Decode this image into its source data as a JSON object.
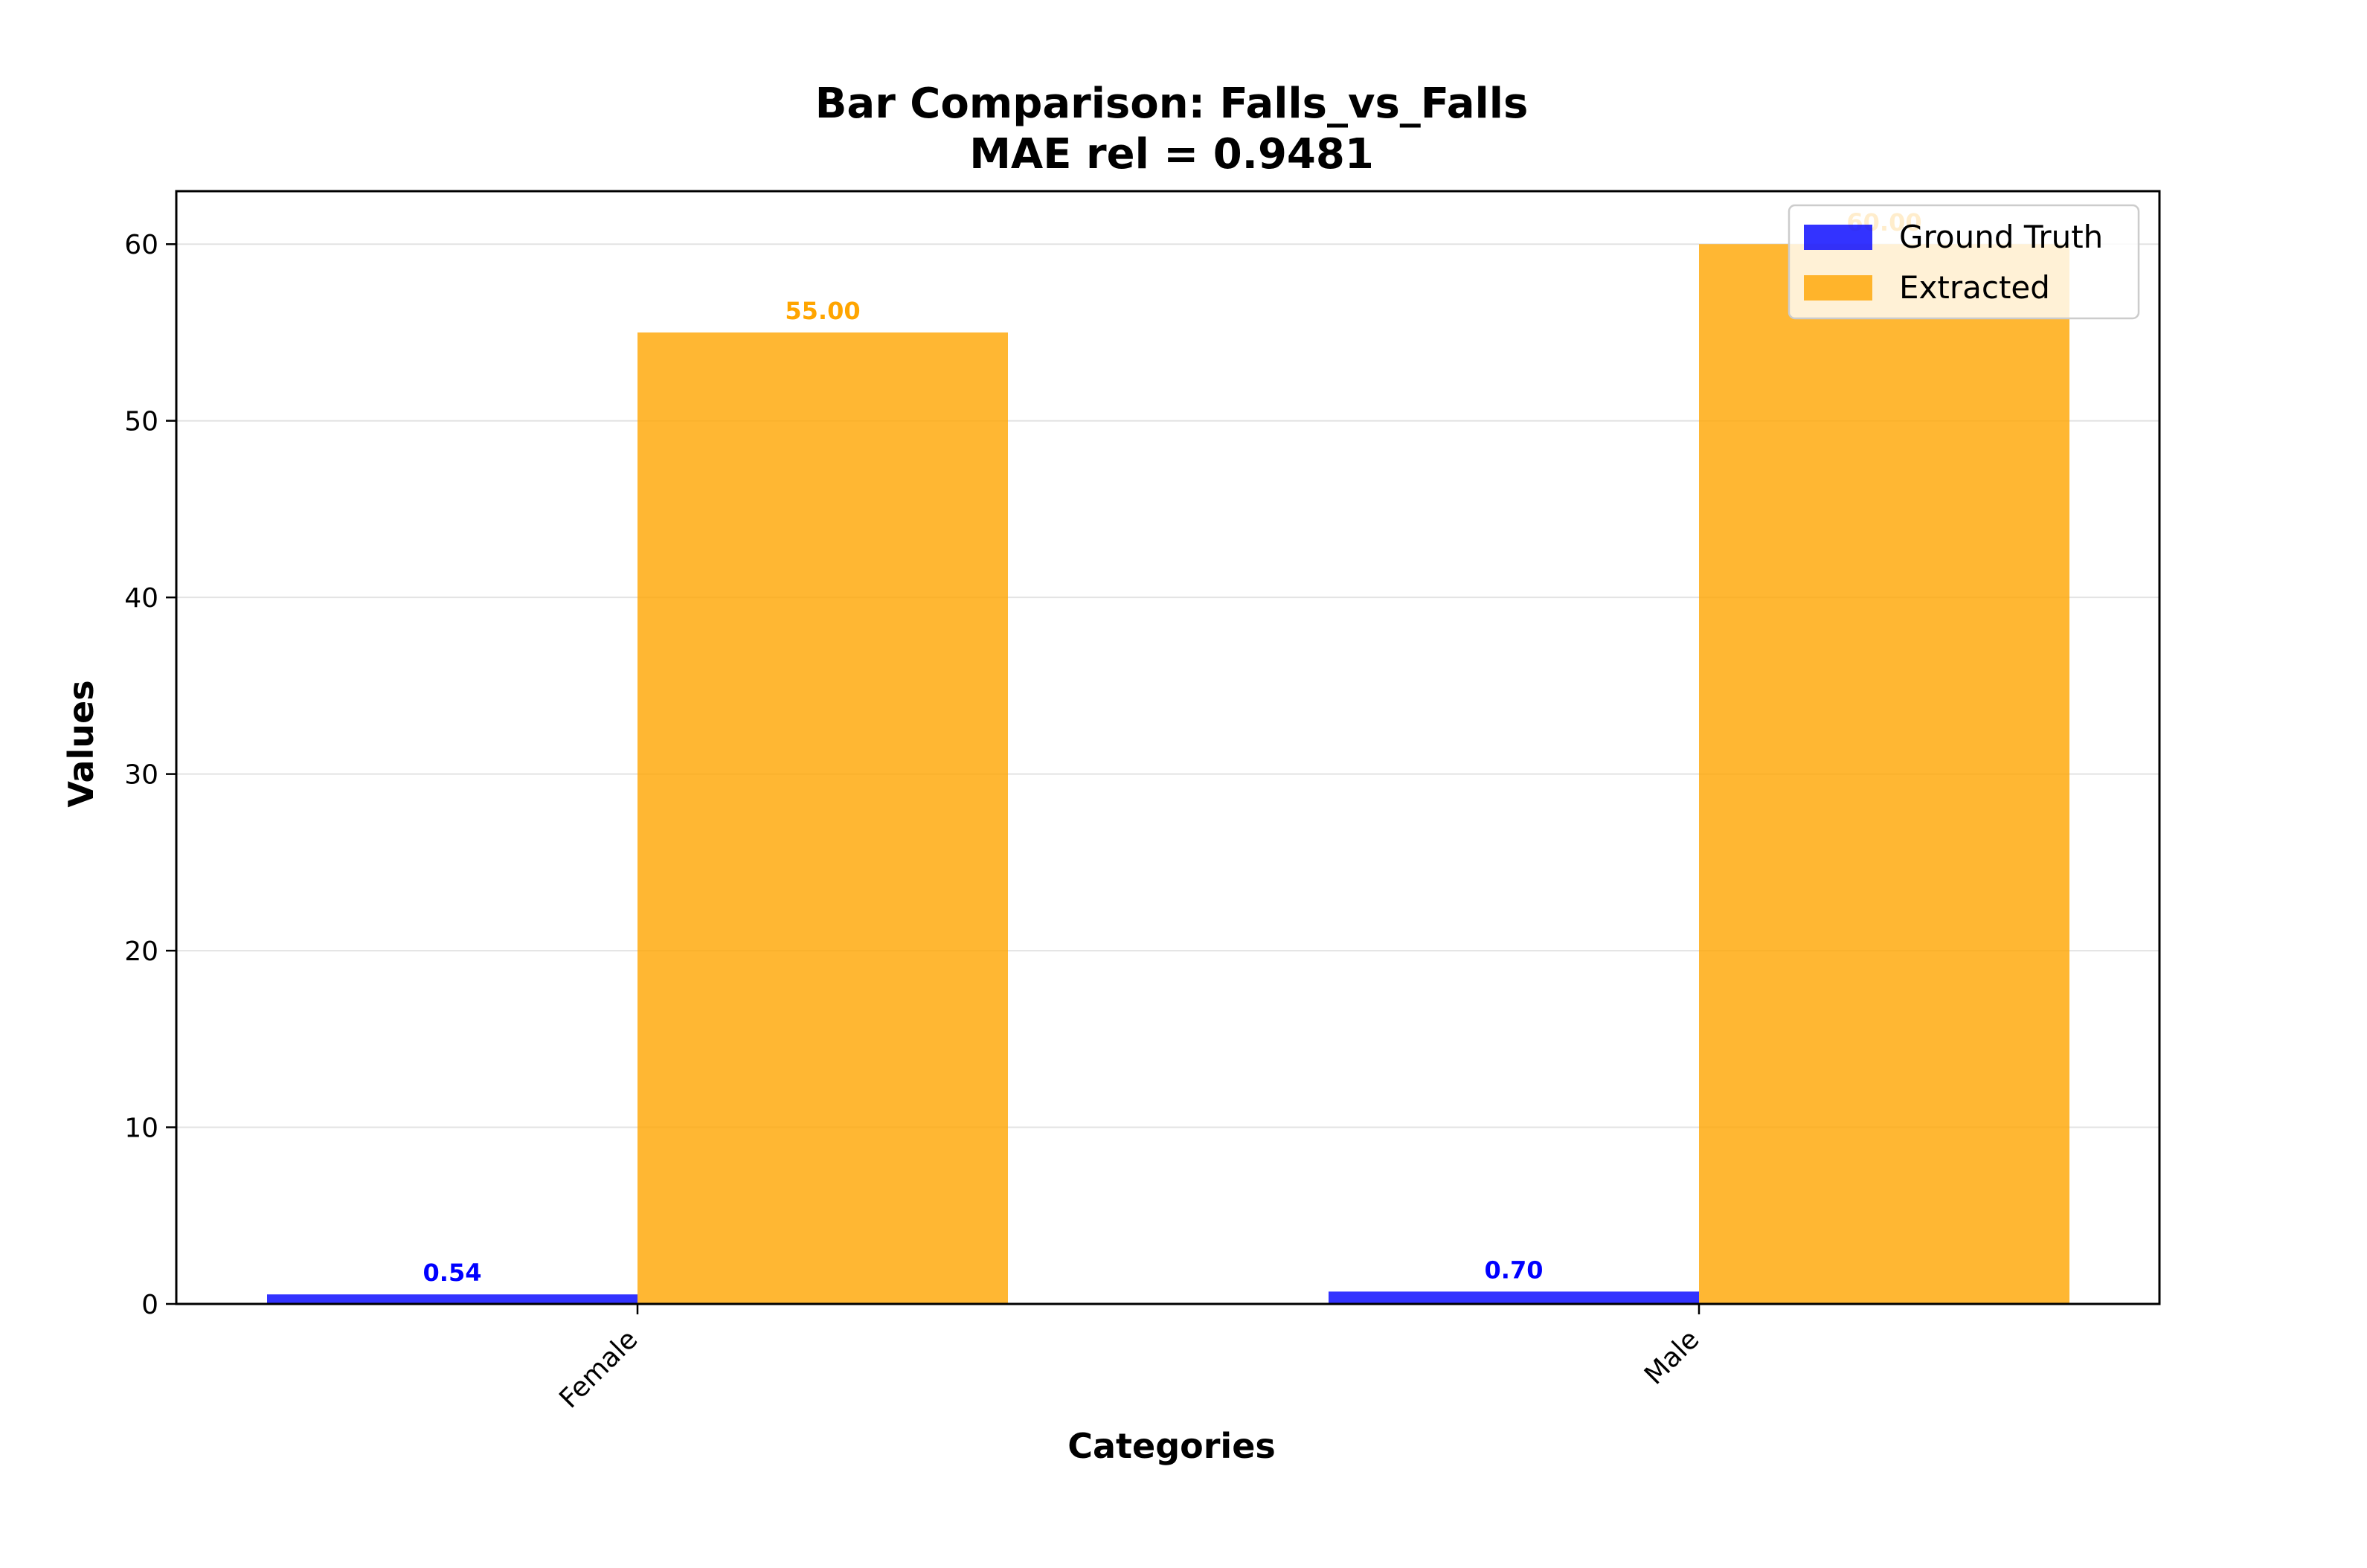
{
  "chart_data": {
    "type": "bar",
    "title": "Bar Comparison: Falls_vs_Falls",
    "subtitle": "MAE rel = 0.9481",
    "xlabel": "Categories",
    "ylabel": "Values",
    "categories": [
      "Female",
      "Male"
    ],
    "series": [
      {
        "name": "Ground Truth",
        "values": [
          0.54,
          0.7
        ],
        "labels": [
          "0.54",
          "0.70"
        ],
        "color": "#0000ff"
      },
      {
        "name": "Extracted",
        "values": [
          55.0,
          60.0
        ],
        "labels": [
          "55.00",
          "60.00"
        ],
        "color": "#ffa500"
      }
    ],
    "ylim": [
      0,
      63
    ],
    "yticks": [
      0,
      10,
      20,
      30,
      40,
      50,
      60
    ],
    "grid": true,
    "legend_position": "top-right"
  }
}
